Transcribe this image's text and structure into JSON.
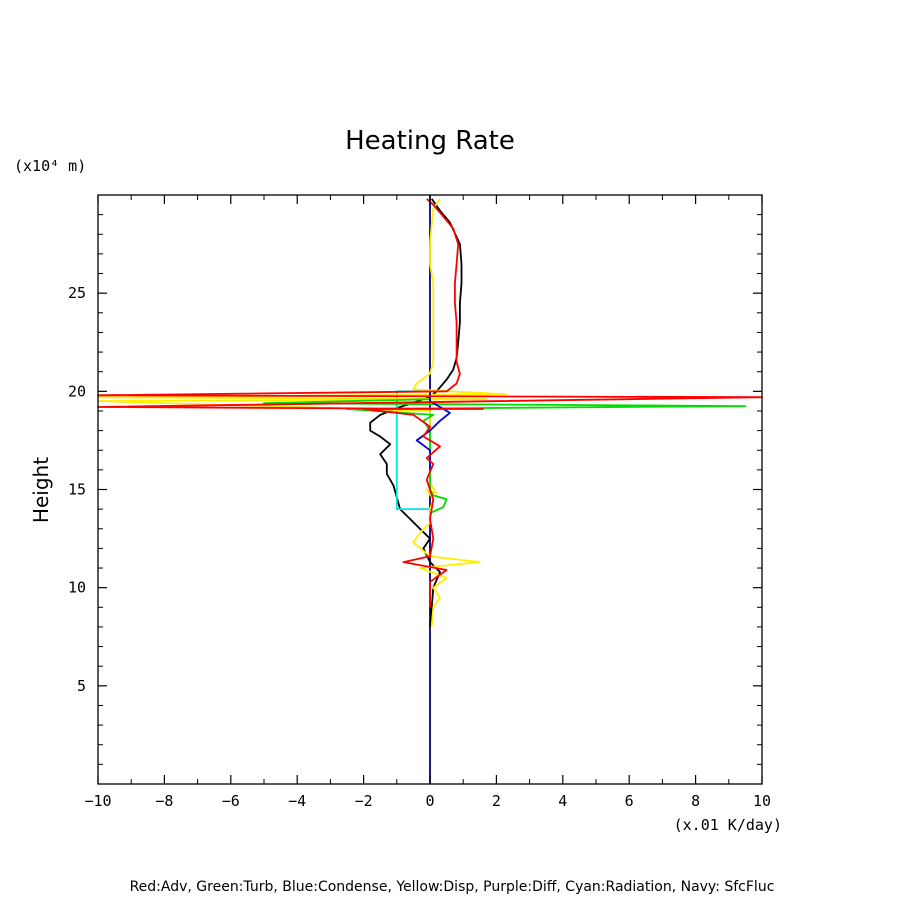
{
  "chart_data": {
    "type": "line",
    "title": "Heating Rate",
    "xlabel": "(x.01 K/day)",
    "ylabel": "Height",
    "yunit_label": "(x10⁴ m)",
    "xlim": [
      -10,
      10
    ],
    "ylim": [
      0,
      30
    ],
    "xticks": [
      -10,
      -8,
      -6,
      -4,
      -2,
      0,
      2,
      4,
      6,
      8,
      10
    ],
    "yticks": [
      5,
      10,
      15,
      20,
      25
    ],
    "legend_text": "Red:Adv, Green:Turb, Blue:Condense, Yellow:Disp, Purple:Diff, Cyan:Radiation, Navy: SfcFluc",
    "grid": false,
    "series": [
      {
        "name": "Black",
        "color": "#000000",
        "points": [
          [
            0.0,
            8.0
          ],
          [
            0.05,
            9.0
          ],
          [
            0.1,
            10.0
          ],
          [
            0.3,
            10.8
          ],
          [
            0.0,
            11.3
          ],
          [
            -0.2,
            12.0
          ],
          [
            0.0,
            12.5
          ],
          [
            -0.3,
            13.0
          ],
          [
            -0.6,
            13.5
          ],
          [
            -0.9,
            14.0
          ],
          [
            -1.0,
            14.6
          ],
          [
            -1.1,
            15.2
          ],
          [
            -1.3,
            15.8
          ],
          [
            -1.3,
            16.3
          ],
          [
            -1.5,
            16.8
          ],
          [
            -1.2,
            17.3
          ],
          [
            -1.5,
            17.7
          ],
          [
            -1.8,
            18.0
          ],
          [
            -1.8,
            18.4
          ],
          [
            -1.5,
            18.8
          ],
          [
            -0.9,
            19.2
          ],
          [
            0.0,
            19.7
          ],
          [
            0.2,
            20.0
          ],
          [
            0.5,
            20.6
          ],
          [
            0.7,
            21.1
          ],
          [
            0.8,
            21.7
          ],
          [
            0.85,
            22.5
          ],
          [
            0.9,
            23.5
          ],
          [
            0.9,
            24.5
          ],
          [
            0.95,
            25.5
          ],
          [
            0.95,
            26.5
          ],
          [
            0.9,
            27.5
          ],
          [
            0.6,
            28.6
          ],
          [
            0.3,
            29.2
          ],
          [
            0.05,
            29.8
          ]
        ]
      },
      {
        "name": "Red",
        "color": "#ff0000",
        "points": [
          [
            0.0,
            9.0
          ],
          [
            0.0,
            10.3
          ],
          [
            0.5,
            10.9
          ],
          [
            -0.8,
            11.3
          ],
          [
            0.0,
            11.6
          ],
          [
            0.1,
            12.5
          ],
          [
            0.0,
            13.5
          ],
          [
            0.1,
            14.5
          ],
          [
            -0.1,
            15.5
          ],
          [
            0.1,
            16.3
          ],
          [
            -0.1,
            16.6
          ],
          [
            0.3,
            17.2
          ],
          [
            -0.2,
            17.7
          ],
          [
            0.0,
            18.2
          ],
          [
            -0.5,
            18.8
          ],
          [
            -2.0,
            19.1
          ],
          [
            1.6,
            19.1
          ],
          [
            -10.0,
            19.2
          ],
          [
            10.0,
            19.7
          ],
          [
            -10.0,
            19.8
          ],
          [
            0.5,
            20.0
          ],
          [
            0.8,
            20.4
          ],
          [
            0.9,
            20.9
          ],
          [
            0.8,
            21.5
          ],
          [
            0.8,
            22.5
          ],
          [
            0.8,
            23.5
          ],
          [
            0.75,
            24.5
          ],
          [
            0.75,
            25.5
          ],
          [
            0.8,
            26.5
          ],
          [
            0.85,
            27.5
          ],
          [
            0.7,
            28.3
          ],
          [
            0.4,
            28.9
          ],
          [
            0.1,
            29.5
          ],
          [
            -0.1,
            29.8
          ]
        ]
      },
      {
        "name": "Green",
        "color": "#00dd00",
        "points": [
          [
            0.0,
            13.8
          ],
          [
            0.4,
            14.1
          ],
          [
            0.5,
            14.5
          ],
          [
            0.1,
            14.7
          ],
          [
            0.0,
            15.0
          ],
          [
            0.0,
            18.0
          ],
          [
            -0.2,
            18.5
          ],
          [
            0.1,
            18.8
          ],
          [
            -2.5,
            19.1
          ],
          [
            9.5,
            19.25
          ],
          [
            -5.0,
            19.4
          ],
          [
            0.0,
            19.6
          ],
          [
            0.0,
            20.0
          ]
        ]
      },
      {
        "name": "Blue",
        "color": "#0000dd",
        "points": [
          [
            0.0,
            16.0
          ],
          [
            0.0,
            17.0
          ],
          [
            -0.4,
            17.5
          ],
          [
            0.0,
            18.0
          ],
          [
            0.3,
            18.5
          ],
          [
            0.6,
            18.9
          ],
          [
            0.3,
            19.2
          ],
          [
            0.0,
            19.5
          ],
          [
            0.0,
            20.0
          ]
        ]
      },
      {
        "name": "Yellow",
        "color": "#ffee00",
        "points": [
          [
            0.05,
            8.0
          ],
          [
            0.1,
            9.0
          ],
          [
            0.3,
            9.5
          ],
          [
            0.1,
            10.0
          ],
          [
            0.5,
            10.5
          ],
          [
            -0.3,
            11.0
          ],
          [
            1.5,
            11.3
          ],
          [
            0.0,
            11.6
          ],
          [
            -0.5,
            12.3
          ],
          [
            -0.3,
            12.8
          ],
          [
            0.0,
            13.3
          ],
          [
            0.0,
            14.0
          ],
          [
            0.1,
            14.5
          ],
          [
            -0.1,
            15.0
          ],
          [
            0.2,
            14.8
          ],
          [
            0.0,
            15.3
          ],
          [
            0.0,
            19.0
          ],
          [
            -10.0,
            19.5
          ],
          [
            1.7,
            19.6
          ],
          [
            -10.0,
            19.7
          ],
          [
            2.3,
            19.85
          ],
          [
            -0.5,
            20.1
          ],
          [
            -0.4,
            20.4
          ],
          [
            0.0,
            20.9
          ],
          [
            0.1,
            21.5
          ],
          [
            0.1,
            22.5
          ],
          [
            0.1,
            23.5
          ],
          [
            0.1,
            24.5
          ],
          [
            0.1,
            25.5
          ],
          [
            0.0,
            26.5
          ],
          [
            0.0,
            27.5
          ],
          [
            0.05,
            28.5
          ],
          [
            0.1,
            29.3
          ],
          [
            0.3,
            29.8
          ]
        ]
      },
      {
        "name": "Cyan",
        "color": "#00e5e5",
        "points": [
          [
            0.0,
            14.0
          ],
          [
            -1.0,
            14.0
          ],
          [
            -1.0,
            20.0
          ],
          [
            0.0,
            20.0
          ]
        ]
      },
      {
        "name": "Navy",
        "color": "#000080",
        "points": [
          [
            0.0,
            0.0
          ],
          [
            0.0,
            30.0
          ]
        ]
      }
    ]
  }
}
